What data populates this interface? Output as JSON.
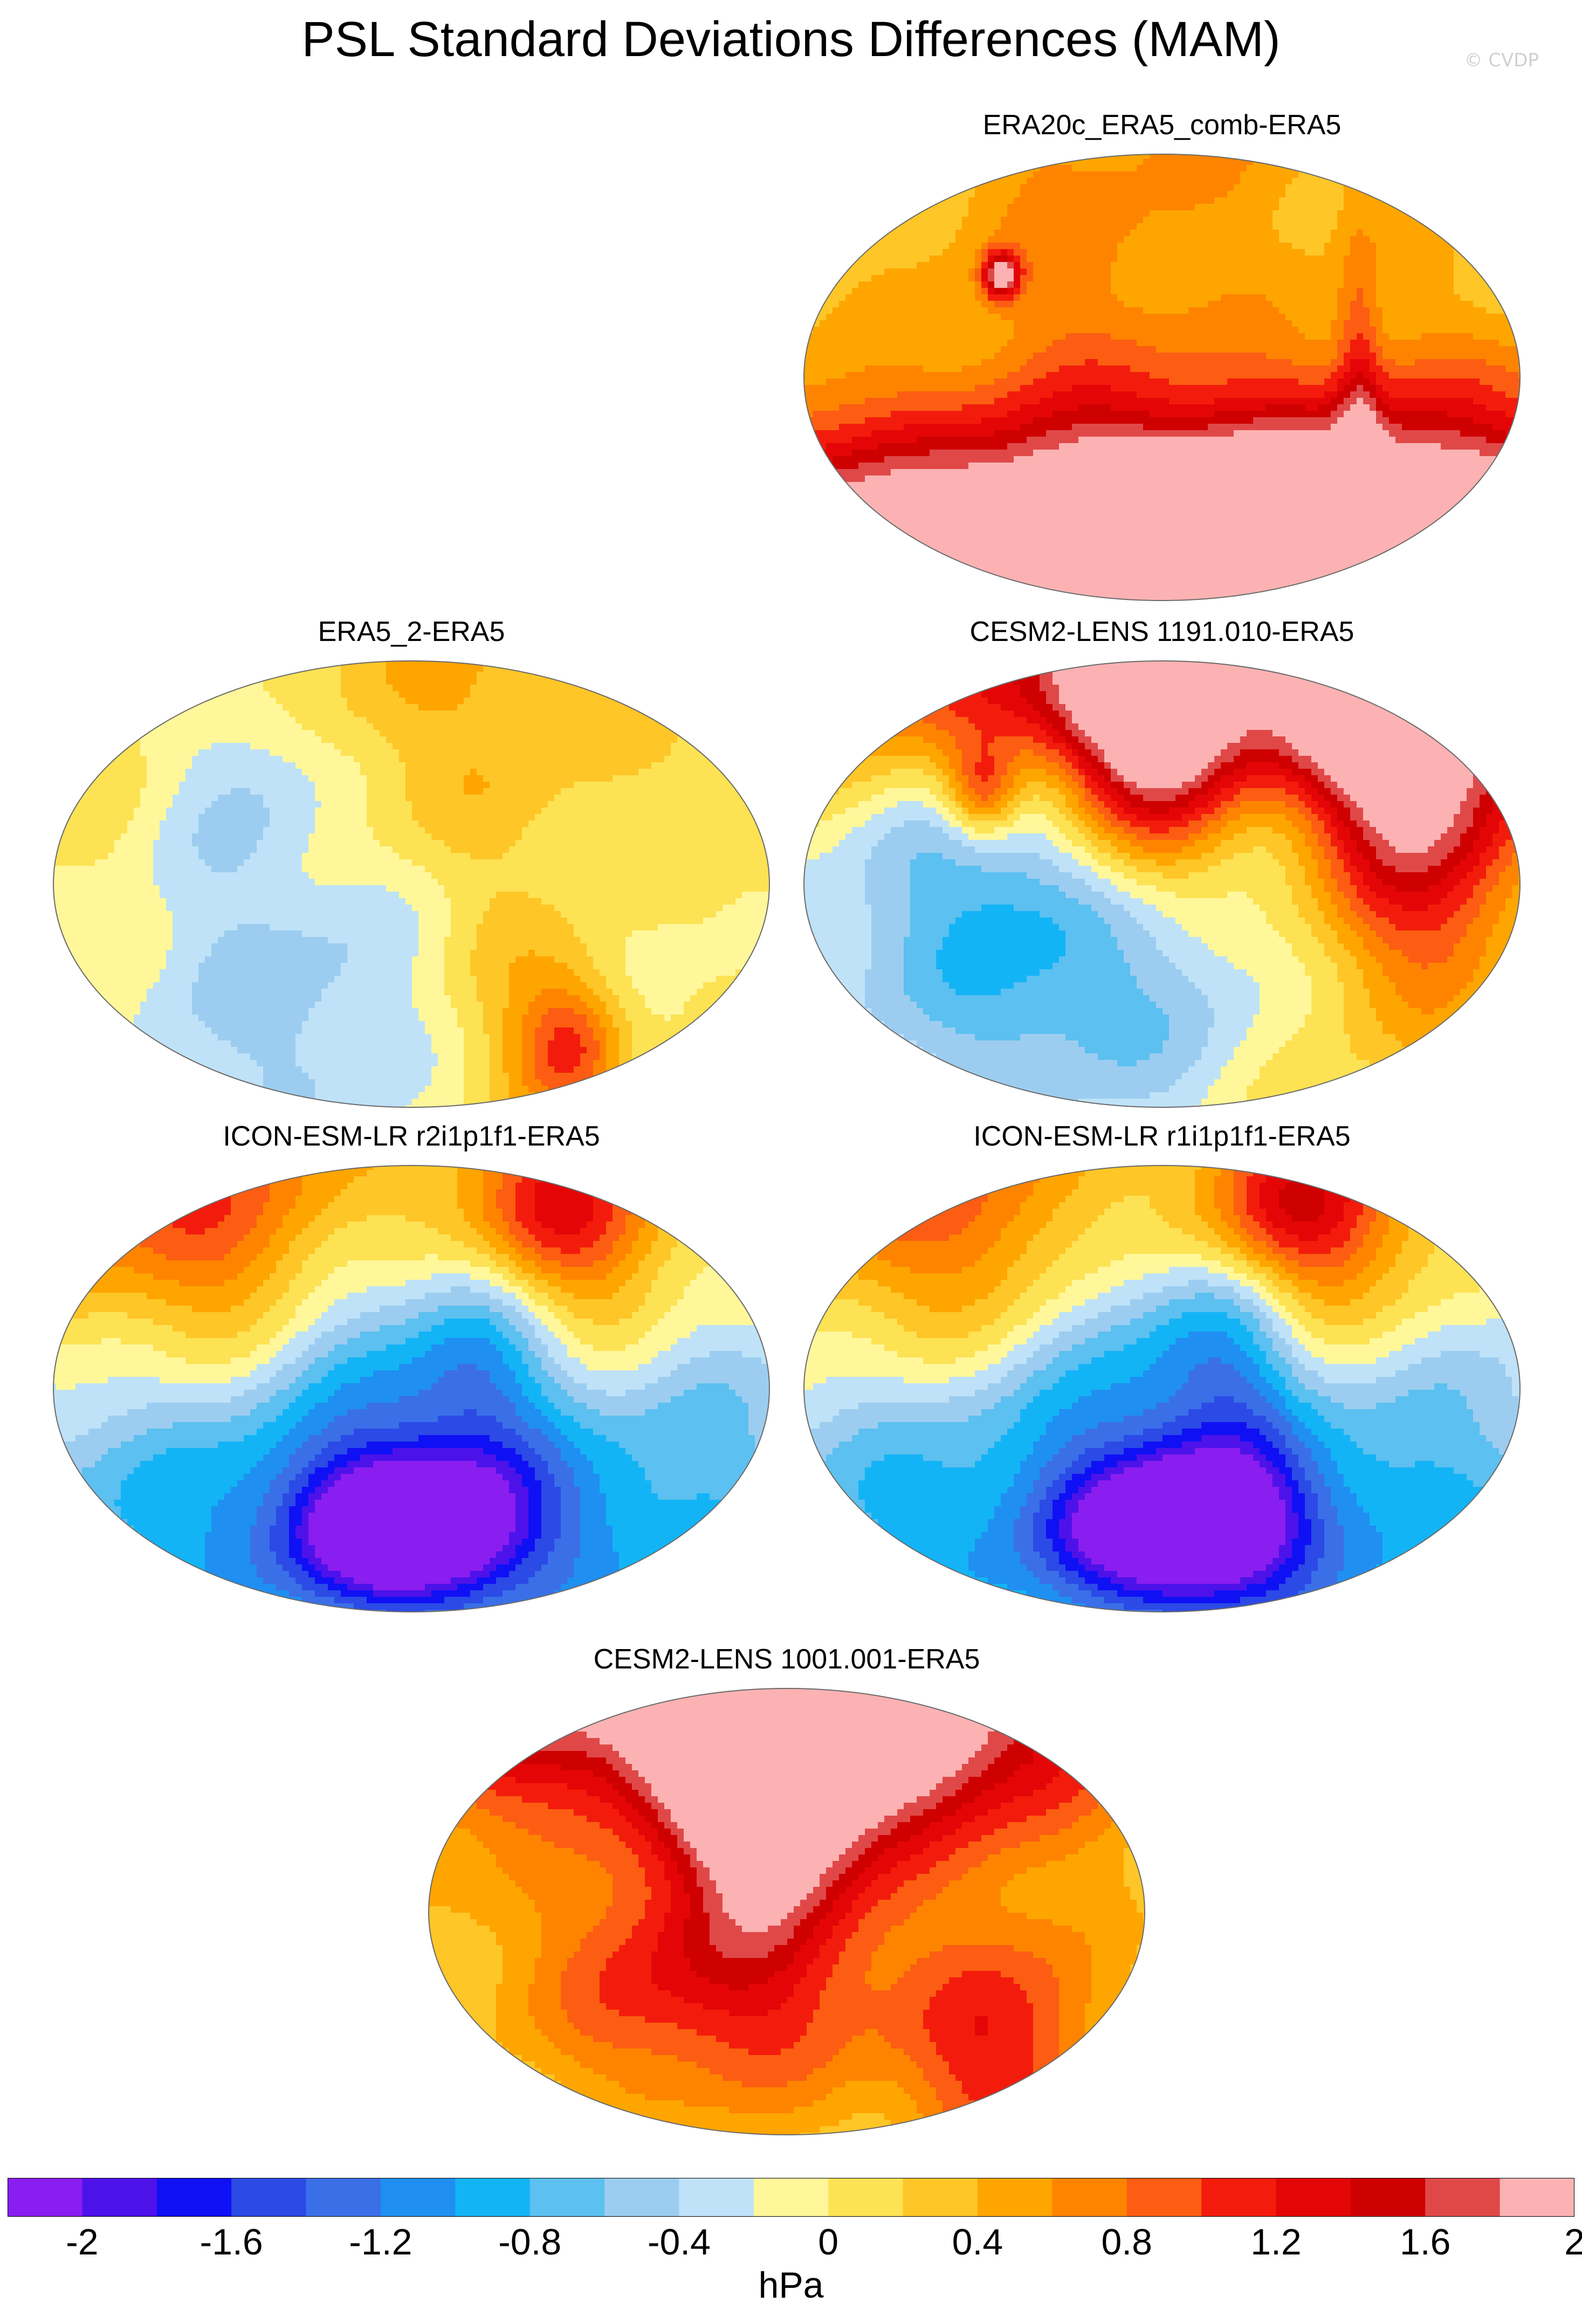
{
  "title": "PSL Standard Deviations Differences (MAM)",
  "credit": "© CVDP",
  "panels": [
    {
      "label": "ERA20c_ERA5_comb-ERA5",
      "blobs": [
        [
          0.05,
          0.18,
          0.8,
          0.9,
          0.9
        ],
        [
          -0.05,
          0.3,
          -0.3,
          0.9,
          0.6
        ],
        [
          0.3,
          0.55,
          -0.3,
          0.5,
          0.5
        ],
        [
          -0.2,
          0.58,
          -0.3,
          0.4,
          0.4
        ],
        [
          0.2,
          0.92,
          1.8,
          1.2,
          0.35
        ],
        [
          0.0,
          0.95,
          2.0,
          2.0,
          0.35
        ],
        [
          -0.25,
          0.3,
          0.3,
          0.35,
          0.3
        ],
        [
          -0.45,
          0.28,
          1.6,
          0.05,
          0.05
        ],
        [
          0.55,
          0.55,
          0.6,
          0.06,
          0.35
        ],
        [
          -0.6,
          0.7,
          -0.3,
          0.3,
          0.3
        ]
      ]
    },
    {
      "label": "ERA5_2-ERA5",
      "blobs": [
        [
          0.05,
          0.2,
          0.5,
          1.0,
          0.5
        ],
        [
          -0.4,
          0.45,
          -0.3,
          0.7,
          0.6
        ],
        [
          -0.2,
          0.75,
          -0.5,
          0.6,
          0.4
        ],
        [
          0.3,
          0.8,
          0.5,
          0.3,
          0.3
        ],
        [
          0.45,
          0.85,
          0.9,
          0.15,
          0.15
        ],
        [
          -0.45,
          0.25,
          -0.5,
          0.25,
          0.25
        ],
        [
          0.65,
          0.55,
          -0.3,
          0.4,
          0.8
        ]
      ]
    },
    {
      "label": "CESM2-LENS 1191.010-ERA5",
      "blobs": [
        [
          -0.05,
          0.05,
          1.6,
          1.2,
          0.25
        ],
        [
          -0.05,
          0.2,
          1.8,
          0.25,
          0.35
        ],
        [
          0.55,
          0.13,
          1.3,
          0.35,
          0.3
        ],
        [
          -0.3,
          0.35,
          -0.6,
          0.6,
          0.4
        ],
        [
          -0.1,
          0.7,
          -0.8,
          0.9,
          0.4
        ],
        [
          0.75,
          0.4,
          1.2,
          0.3,
          0.4
        ],
        [
          0.4,
          0.55,
          0.5,
          0.4,
          0.6
        ],
        [
          0.35,
          0.22,
          -0.6,
          0.25,
          0.3
        ],
        [
          -0.5,
          0.3,
          1.0,
          0.1,
          0.1
        ]
      ]
    },
    {
      "label": "ICON-ESM-LR r2i1p1f1-ERA5",
      "blobs": [
        [
          -0.35,
          0.15,
          1.2,
          0.8,
          0.35
        ],
        [
          -0.1,
          0.22,
          -0.9,
          0.3,
          0.4
        ],
        [
          0.2,
          0.3,
          -0.7,
          0.2,
          0.5
        ],
        [
          0.3,
          0.1,
          1.0,
          0.3,
          0.2
        ],
        [
          -0.1,
          0.78,
          -1.2,
          1.4,
          0.5
        ],
        [
          -0.02,
          0.8,
          -2.0,
          0.3,
          0.15
        ],
        [
          0.55,
          0.3,
          0.6,
          0.3,
          0.4
        ],
        [
          0.6,
          0.5,
          -0.4,
          0.4,
          0.5
        ]
      ]
    },
    {
      "label": "ICON-ESM-LR r1i1p1f1-ERA5",
      "blobs": [
        [
          -0.35,
          0.15,
          1.1,
          0.8,
          0.35
        ],
        [
          -0.1,
          0.22,
          -0.9,
          0.3,
          0.4
        ],
        [
          0.2,
          0.3,
          -0.7,
          0.2,
          0.5
        ],
        [
          0.3,
          0.1,
          1.2,
          0.3,
          0.2
        ],
        [
          -0.1,
          0.78,
          -1.2,
          1.4,
          0.5
        ],
        [
          0.05,
          0.8,
          -2.0,
          0.3,
          0.15
        ],
        [
          0.55,
          0.3,
          0.6,
          0.3,
          0.4
        ],
        [
          0.6,
          0.5,
          -0.4,
          0.4,
          0.5
        ]
      ]
    },
    {
      "label": "CESM2-LENS 1001.001-ERA5",
      "blobs": [
        [
          -0.3,
          0.05,
          2.0,
          1.0,
          0.25
        ],
        [
          -0.05,
          0.2,
          1.7,
          0.2,
          0.25
        ],
        [
          0.3,
          0.12,
          1.4,
          0.5,
          0.3
        ],
        [
          -0.15,
          0.45,
          0.6,
          0.8,
          0.4
        ],
        [
          -0.2,
          0.65,
          0.8,
          0.5,
          0.3
        ],
        [
          0.4,
          0.35,
          -0.5,
          0.3,
          0.4
        ],
        [
          -0.55,
          0.3,
          -0.4,
          0.3,
          0.3
        ],
        [
          0.6,
          0.8,
          1.0,
          0.3,
          0.3
        ]
      ]
    }
  ],
  "colorbar": {
    "units": "hPa",
    "tick_labels": [
      "-2",
      "-1.6",
      "-1.2",
      "-0.8",
      "-0.4",
      "0",
      "0.4",
      "0.8",
      "1.2",
      "1.6",
      "2"
    ],
    "colors": [
      "#8a1df0",
      "#4d12ea",
      "#1010f4",
      "#2b4ae6",
      "#3a6fe8",
      "#1f8ff2",
      "#13b4f6",
      "#5cc0f0",
      "#9ccdf0",
      "#bfe2f8",
      "#fff79a",
      "#fde254",
      "#fec627",
      "#fea500",
      "#fe8400",
      "#fc5d12",
      "#f31c0c",
      "#e40606",
      "#cf0000",
      "#e04848",
      "#fcb2b2"
    ],
    "levels": [
      -2.2,
      -2.0,
      -1.8,
      -1.6,
      -1.4,
      -1.2,
      -1.0,
      -0.8,
      -0.6,
      -0.4,
      -0.2,
      0,
      0.2,
      0.4,
      0.6,
      0.8,
      1.0,
      1.2,
      1.4,
      1.6,
      1.8,
      2.0,
      2.2
    ]
  }
}
